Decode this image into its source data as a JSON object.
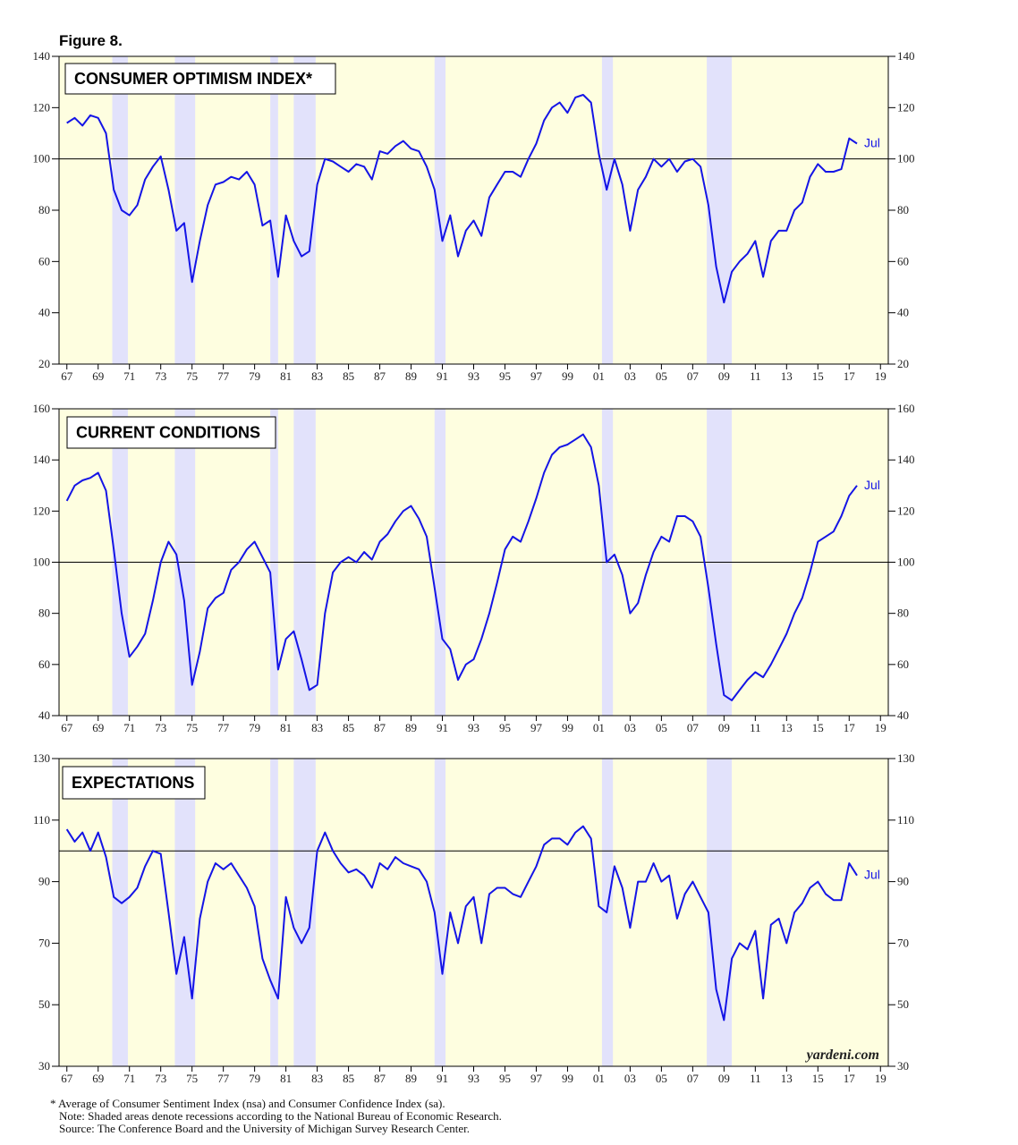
{
  "figure_label": "Figure 8.",
  "notes": [
    "* Average of Consumer Sentiment Index (nsa) and Consumer Confidence Index (sa).",
    "Note: Shaded areas denote recessions according to the National Bureau of Economic Research.",
    "Source: The Conference Board and the University of Michigan Survey Research Center."
  ],
  "chart_data": [
    {
      "type": "line",
      "title": "CONSUMER OPTIMISM INDEX*",
      "annotation": "Jul",
      "color": "#1414e6",
      "reference_line": 100,
      "recessions": [
        [
          1969.9,
          1970.9
        ],
        [
          1973.9,
          1975.2
        ],
        [
          1980.0,
          1980.5
        ],
        [
          1981.5,
          1982.9
        ],
        [
          1990.5,
          1991.2
        ],
        [
          2001.2,
          2001.9
        ],
        [
          2007.9,
          2009.5
        ]
      ],
      "xlim": [
        1966.5,
        2019.5
      ],
      "ylim": [
        20,
        140
      ],
      "yticks": [
        20,
        40,
        60,
        80,
        100,
        120,
        140
      ],
      "xticks": [
        {
          "value": 1967,
          "label": "67"
        },
        {
          "value": 1969,
          "label": "69"
        },
        {
          "value": 1971,
          "label": "71"
        },
        {
          "value": 1973,
          "label": "73"
        },
        {
          "value": 1975,
          "label": "75"
        },
        {
          "value": 1977,
          "label": "77"
        },
        {
          "value": 1979,
          "label": "79"
        },
        {
          "value": 1981,
          "label": "81"
        },
        {
          "value": 1983,
          "label": "83"
        },
        {
          "value": 1985,
          "label": "85"
        },
        {
          "value": 1987,
          "label": "87"
        },
        {
          "value": 1989,
          "label": "89"
        },
        {
          "value": 1991,
          "label": "91"
        },
        {
          "value": 1993,
          "label": "93"
        },
        {
          "value": 1995,
          "label": "95"
        },
        {
          "value": 1997,
          "label": "97"
        },
        {
          "value": 1999,
          "label": "99"
        },
        {
          "value": 2001,
          "label": "01"
        },
        {
          "value": 2003,
          "label": "03"
        },
        {
          "value": 2005,
          "label": "05"
        },
        {
          "value": 2007,
          "label": "07"
        },
        {
          "value": 2009,
          "label": "09"
        },
        {
          "value": 2011,
          "label": "11"
        },
        {
          "value": 2013,
          "label": "13"
        },
        {
          "value": 2015,
          "label": "15"
        },
        {
          "value": 2017,
          "label": "17"
        },
        {
          "value": 2019,
          "label": "19"
        }
      ],
      "x": [
        1967,
        1967.5,
        1968,
        1968.5,
        1969,
        1969.5,
        1970,
        1970.5,
        1971,
        1971.5,
        1972,
        1972.5,
        1973,
        1973.5,
        1974,
        1974.5,
        1975,
        1975.5,
        1976,
        1976.5,
        1977,
        1977.5,
        1978,
        1978.5,
        1979,
        1979.5,
        1980,
        1980.5,
        1981,
        1981.5,
        1982,
        1982.5,
        1983,
        1983.5,
        1984,
        1984.5,
        1985,
        1985.5,
        1986,
        1986.5,
        1987,
        1987.5,
        1988,
        1988.5,
        1989,
        1989.5,
        1990,
        1990.5,
        1991,
        1991.5,
        1992,
        1992.5,
        1993,
        1993.5,
        1994,
        1994.5,
        1995,
        1995.5,
        1996,
        1996.5,
        1997,
        1997.5,
        1998,
        1998.5,
        1999,
        1999.5,
        2000,
        2000.5,
        2001,
        2001.5,
        2002,
        2002.5,
        2003,
        2003.5,
        2004,
        2004.5,
        2005,
        2005.5,
        2006,
        2006.5,
        2007,
        2007.5,
        2008,
        2008.5,
        2009,
        2009.5,
        2010,
        2010.5,
        2011,
        2011.5,
        2012,
        2012.5,
        2013,
        2013.5,
        2014,
        2014.5,
        2015,
        2015.5,
        2016,
        2016.5,
        2017,
        2017.5
      ],
      "values": [
        114,
        116,
        113,
        117,
        116,
        110,
        88,
        80,
        78,
        82,
        92,
        97,
        101,
        88,
        72,
        75,
        52,
        68,
        82,
        90,
        91,
        93,
        92,
        95,
        90,
        74,
        76,
        54,
        78,
        68,
        62,
        64,
        90,
        100,
        99,
        97,
        95,
        98,
        97,
        92,
        103,
        102,
        105,
        107,
        104,
        103,
        97,
        88,
        68,
        78,
        62,
        72,
        76,
        70,
        85,
        90,
        95,
        95,
        93,
        100,
        106,
        115,
        120,
        122,
        118,
        124,
        125,
        122,
        102,
        88,
        100,
        90,
        72,
        88,
        93,
        100,
        97,
        100,
        95,
        99,
        100,
        97,
        82,
        58,
        44,
        56,
        60,
        63,
        68,
        54,
        68,
        72,
        72,
        80,
        83,
        93,
        98,
        95,
        95,
        96,
        108,
        106
      ]
    },
    {
      "type": "line",
      "title": "CURRENT CONDITIONS",
      "annotation": "Jul",
      "color": "#1414e6",
      "reference_line": 100,
      "recessions": [
        [
          1969.9,
          1970.9
        ],
        [
          1973.9,
          1975.2
        ],
        [
          1980.0,
          1980.5
        ],
        [
          1981.5,
          1982.9
        ],
        [
          1990.5,
          1991.2
        ],
        [
          2001.2,
          2001.9
        ],
        [
          2007.9,
          2009.5
        ]
      ],
      "xlim": [
        1966.5,
        2019.5
      ],
      "ylim": [
        40,
        160
      ],
      "yticks": [
        40,
        60,
        80,
        100,
        120,
        140,
        160
      ],
      "xticks": [
        {
          "value": 1967,
          "label": "67"
        },
        {
          "value": 1969,
          "label": "69"
        },
        {
          "value": 1971,
          "label": "71"
        },
        {
          "value": 1973,
          "label": "73"
        },
        {
          "value": 1975,
          "label": "75"
        },
        {
          "value": 1977,
          "label": "77"
        },
        {
          "value": 1979,
          "label": "79"
        },
        {
          "value": 1981,
          "label": "81"
        },
        {
          "value": 1983,
          "label": "83"
        },
        {
          "value": 1985,
          "label": "85"
        },
        {
          "value": 1987,
          "label": "87"
        },
        {
          "value": 1989,
          "label": "89"
        },
        {
          "value": 1991,
          "label": "91"
        },
        {
          "value": 1993,
          "label": "93"
        },
        {
          "value": 1995,
          "label": "95"
        },
        {
          "value": 1997,
          "label": "97"
        },
        {
          "value": 1999,
          "label": "99"
        },
        {
          "value": 2001,
          "label": "01"
        },
        {
          "value": 2003,
          "label": "03"
        },
        {
          "value": 2005,
          "label": "05"
        },
        {
          "value": 2007,
          "label": "07"
        },
        {
          "value": 2009,
          "label": "09"
        },
        {
          "value": 2011,
          "label": "11"
        },
        {
          "value": 2013,
          "label": "13"
        },
        {
          "value": 2015,
          "label": "15"
        },
        {
          "value": 2017,
          "label": "17"
        },
        {
          "value": 2019,
          "label": "19"
        }
      ],
      "x": [
        1967,
        1967.5,
        1968,
        1968.5,
        1969,
        1969.5,
        1970,
        1970.5,
        1971,
        1971.5,
        1972,
        1972.5,
        1973,
        1973.5,
        1974,
        1974.5,
        1975,
        1975.5,
        1976,
        1976.5,
        1977,
        1977.5,
        1978,
        1978.5,
        1979,
        1979.5,
        1980,
        1980.5,
        1981,
        1981.5,
        1982,
        1982.5,
        1983,
        1983.5,
        1984,
        1984.5,
        1985,
        1985.5,
        1986,
        1986.5,
        1987,
        1987.5,
        1988,
        1988.5,
        1989,
        1989.5,
        1990,
        1990.5,
        1991,
        1991.5,
        1992,
        1992.5,
        1993,
        1993.5,
        1994,
        1994.5,
        1995,
        1995.5,
        1996,
        1996.5,
        1997,
        1997.5,
        1998,
        1998.5,
        1999,
        1999.5,
        2000,
        2000.5,
        2001,
        2001.5,
        2002,
        2002.5,
        2003,
        2003.5,
        2004,
        2004.5,
        2005,
        2005.5,
        2006,
        2006.5,
        2007,
        2007.5,
        2008,
        2008.5,
        2009,
        2009.5,
        2010,
        2010.5,
        2011,
        2011.5,
        2012,
        2012.5,
        2013,
        2013.5,
        2014,
        2014.5,
        2015,
        2015.5,
        2016,
        2016.5,
        2017,
        2017.5
      ],
      "values": [
        124,
        130,
        132,
        133,
        135,
        128,
        105,
        80,
        63,
        67,
        72,
        85,
        100,
        108,
        103,
        85,
        52,
        65,
        82,
        86,
        88,
        97,
        100,
        105,
        108,
        102,
        96,
        58,
        70,
        73,
        62,
        50,
        52,
        80,
        96,
        100,
        102,
        100,
        104,
        101,
        108,
        111,
        116,
        120,
        122,
        117,
        110,
        90,
        70,
        66,
        54,
        60,
        62,
        70,
        80,
        92,
        105,
        110,
        108,
        116,
        125,
        135,
        142,
        145,
        146,
        148,
        150,
        145,
        130,
        100,
        103,
        95,
        80,
        84,
        95,
        104,
        110,
        108,
        118,
        118,
        116,
        110,
        90,
        68,
        48,
        46,
        50,
        54,
        57,
        55,
        60,
        66,
        72,
        80,
        86,
        96,
        108,
        110,
        112,
        118,
        126,
        130
      ]
    },
    {
      "type": "line",
      "title": "EXPECTATIONS",
      "annotation": "Jul",
      "watermark": "yardeni.com",
      "color": "#1414e6",
      "reference_line": 100,
      "recessions": [
        [
          1969.9,
          1970.9
        ],
        [
          1973.9,
          1975.2
        ],
        [
          1980.0,
          1980.5
        ],
        [
          1981.5,
          1982.9
        ],
        [
          1990.5,
          1991.2
        ],
        [
          2001.2,
          2001.9
        ],
        [
          2007.9,
          2009.5
        ]
      ],
      "xlim": [
        1966.5,
        2019.5
      ],
      "ylim": [
        30,
        130
      ],
      "yticks": [
        30,
        50,
        70,
        90,
        110,
        130
      ],
      "xticks": [
        {
          "value": 1967,
          "label": "67"
        },
        {
          "value": 1969,
          "label": "69"
        },
        {
          "value": 1971,
          "label": "71"
        },
        {
          "value": 1973,
          "label": "73"
        },
        {
          "value": 1975,
          "label": "75"
        },
        {
          "value": 1977,
          "label": "77"
        },
        {
          "value": 1979,
          "label": "79"
        },
        {
          "value": 1981,
          "label": "81"
        },
        {
          "value": 1983,
          "label": "83"
        },
        {
          "value": 1985,
          "label": "85"
        },
        {
          "value": 1987,
          "label": "87"
        },
        {
          "value": 1989,
          "label": "89"
        },
        {
          "value": 1991,
          "label": "91"
        },
        {
          "value": 1993,
          "label": "93"
        },
        {
          "value": 1995,
          "label": "95"
        },
        {
          "value": 1997,
          "label": "97"
        },
        {
          "value": 1999,
          "label": "99"
        },
        {
          "value": 2001,
          "label": "01"
        },
        {
          "value": 2003,
          "label": "03"
        },
        {
          "value": 2005,
          "label": "05"
        },
        {
          "value": 2007,
          "label": "07"
        },
        {
          "value": 2009,
          "label": "09"
        },
        {
          "value": 2011,
          "label": "11"
        },
        {
          "value": 2013,
          "label": "13"
        },
        {
          "value": 2015,
          "label": "15"
        },
        {
          "value": 2017,
          "label": "17"
        },
        {
          "value": 2019,
          "label": "19"
        }
      ],
      "x": [
        1967,
        1967.5,
        1968,
        1968.5,
        1969,
        1969.5,
        1970,
        1970.5,
        1971,
        1971.5,
        1972,
        1972.5,
        1973,
        1973.5,
        1974,
        1974.5,
        1975,
        1975.5,
        1976,
        1976.5,
        1977,
        1977.5,
        1978,
        1978.5,
        1979,
        1979.5,
        1980,
        1980.5,
        1981,
        1981.5,
        1982,
        1982.5,
        1983,
        1983.5,
        1984,
        1984.5,
        1985,
        1985.5,
        1986,
        1986.5,
        1987,
        1987.5,
        1988,
        1988.5,
        1989,
        1989.5,
        1990,
        1990.5,
        1991,
        1991.5,
        1992,
        1992.5,
        1993,
        1993.5,
        1994,
        1994.5,
        1995,
        1995.5,
        1996,
        1996.5,
        1997,
        1997.5,
        1998,
        1998.5,
        1999,
        1999.5,
        2000,
        2000.5,
        2001,
        2001.5,
        2002,
        2002.5,
        2003,
        2003.5,
        2004,
        2004.5,
        2005,
        2005.5,
        2006,
        2006.5,
        2007,
        2007.5,
        2008,
        2008.5,
        2009,
        2009.5,
        2010,
        2010.5,
        2011,
        2011.5,
        2012,
        2012.5,
        2013,
        2013.5,
        2014,
        2014.5,
        2015,
        2015.5,
        2016,
        2016.5,
        2017,
        2017.5
      ],
      "values": [
        107,
        103,
        106,
        100,
        106,
        98,
        85,
        83,
        85,
        88,
        95,
        100,
        99,
        80,
        60,
        72,
        52,
        78,
        90,
        96,
        94,
        96,
        92,
        88,
        82,
        65,
        58,
        52,
        85,
        75,
        70,
        75,
        100,
        106,
        100,
        96,
        93,
        94,
        92,
        88,
        96,
        94,
        98,
        96,
        95,
        94,
        90,
        80,
        60,
        80,
        70,
        82,
        85,
        70,
        86,
        88,
        88,
        86,
        85,
        90,
        95,
        102,
        104,
        104,
        102,
        106,
        108,
        104,
        82,
        80,
        95,
        88,
        75,
        90,
        90,
        96,
        90,
        92,
        78,
        86,
        90,
        85,
        80,
        55,
        45,
        65,
        70,
        68,
        74,
        52,
        76,
        78,
        70,
        80,
        83,
        88,
        90,
        86,
        84,
        84,
        96,
        92
      ]
    }
  ]
}
